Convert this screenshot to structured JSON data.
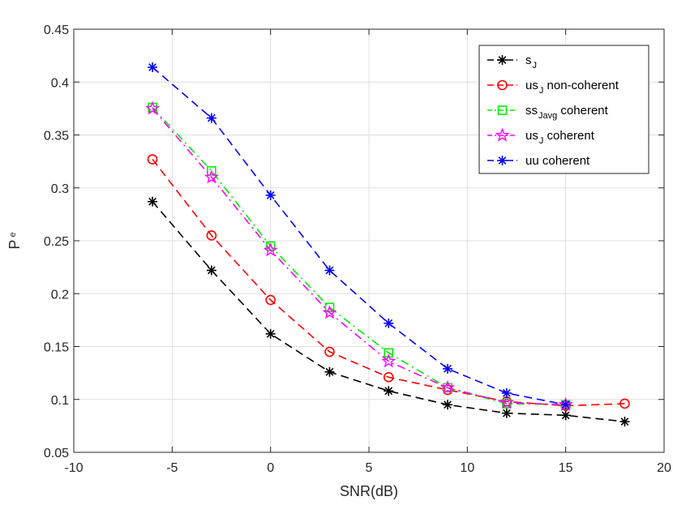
{
  "chart_data": {
    "type": "line",
    "title": "",
    "xlabel": "SNR(dB)",
    "ylabel": {
      "main": "P",
      "sub": "e"
    },
    "xlim": [
      -10,
      20
    ],
    "ylim": [
      0.05,
      0.45
    ],
    "xticks": [
      -10,
      -5,
      0,
      5,
      10,
      15,
      20
    ],
    "yticks": [
      0.05,
      0.1,
      0.15,
      0.2,
      0.25,
      0.3,
      0.35,
      0.4,
      0.45
    ],
    "xtick_labels": [
      "-10",
      "-5",
      "0",
      "5",
      "10",
      "15",
      "20"
    ],
    "ytick_labels": [
      "0.05",
      "0.1",
      "0.15",
      "0.2",
      "0.25",
      "0.3",
      "0.35",
      "0.4",
      "0.45"
    ],
    "grid": true,
    "legend_position": "top-right",
    "series": [
      {
        "name": "s_J",
        "legend_parts": [
          {
            "t": "s",
            "sub": false
          },
          {
            "t": "J",
            "sub": true
          }
        ],
        "color": "#000000",
        "dash": "dashed",
        "marker": "asterisk",
        "x": [
          -6,
          -3,
          0,
          3,
          6,
          9,
          12,
          15,
          18
        ],
        "y": [
          0.287,
          0.222,
          0.162,
          0.126,
          0.108,
          0.095,
          0.087,
          0.085,
          0.079
        ]
      },
      {
        "name": "us_J non-coherent",
        "legend_parts": [
          {
            "t": "us",
            "sub": false
          },
          {
            "t": "J",
            "sub": true
          },
          {
            "t": " non-coherent",
            "sub": false
          }
        ],
        "color": "#ff0000",
        "dash": "dashed",
        "marker": "circle",
        "x": [
          -6,
          -3,
          0,
          3,
          6,
          9,
          12,
          15,
          18
        ],
        "y": [
          0.327,
          0.255,
          0.194,
          0.145,
          0.121,
          0.109,
          0.098,
          0.094,
          0.096
        ]
      },
      {
        "name": "ss_Javg coherent",
        "legend_parts": [
          {
            "t": "ss",
            "sub": false
          },
          {
            "t": "Javg",
            "sub": true
          },
          {
            "t": " coherent",
            "sub": false
          }
        ],
        "color": "#00ee00",
        "dash": "dashdot",
        "marker": "square",
        "x": [
          -6,
          -3,
          0,
          3,
          6,
          9,
          12,
          15
        ],
        "y": [
          0.376,
          0.316,
          0.245,
          0.187,
          0.144,
          0.111,
          0.096,
          0.095
        ]
      },
      {
        "name": "us_J coherent",
        "legend_parts": [
          {
            "t": "us",
            "sub": false
          },
          {
            "t": "J",
            "sub": true
          },
          {
            "t": " coherent",
            "sub": false
          }
        ],
        "color": "#ff00ff",
        "dash": "dashdot",
        "marker": "star",
        "x": [
          -6,
          -3,
          0,
          3,
          6,
          9,
          12,
          15
        ],
        "y": [
          0.375,
          0.31,
          0.241,
          0.182,
          0.136,
          0.111,
          0.097,
          0.095
        ]
      },
      {
        "name": "uu coherent",
        "legend_parts": [
          {
            "t": "uu coherent",
            "sub": false
          }
        ],
        "color": "#0000ff",
        "dash": "dashed",
        "marker": "asterisk",
        "x": [
          -6,
          -3,
          0,
          3,
          6,
          9,
          12,
          15
        ],
        "y": [
          0.414,
          0.366,
          0.293,
          0.222,
          0.172,
          0.129,
          0.106,
          0.095
        ]
      }
    ]
  }
}
